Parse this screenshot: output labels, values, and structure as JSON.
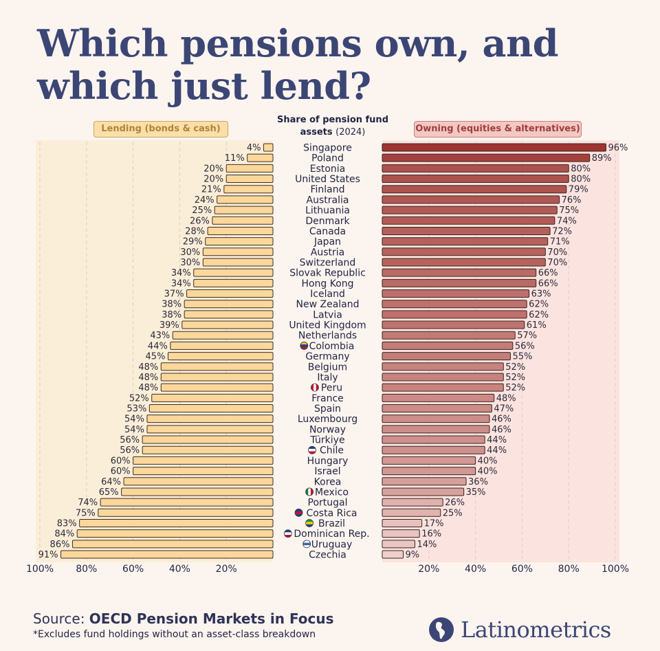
{
  "header": {
    "title_line1": "Which pensions own, and",
    "title_line2": "which just lend?",
    "subtitle_line1": "Share of pension fund",
    "subtitle_line2a": "assets",
    "subtitle_line2b": "(2024)"
  },
  "legend": {
    "lending": "Lending (bonds & cash)",
    "owning": "Owning (equities & alternatives)"
  },
  "colors": {
    "lending_bar": "#fbd79b",
    "lending_bg": "#fbeed8",
    "owning_dark": "#9e3530",
    "owning_light": "#efcfcb",
    "owning_bg": "#fbe3df",
    "title": "#3b4675"
  },
  "chart_data": {
    "type": "bar",
    "orientation": "horizontal-diverging",
    "categories": [
      "Singapore",
      "Poland",
      "Estonia",
      "United States",
      "Finland",
      "Australia",
      "Lithuania",
      "Denmark",
      "Canada",
      "Japan",
      "Austria",
      "Switzerland",
      "Slovak Republic",
      "Hong Kong",
      "Iceland",
      "New Zealand",
      "Latvia",
      "United Kingdom",
      "Netherlands",
      "Colombia",
      "Germany",
      "Belgium",
      "Italy",
      "Peru",
      "France",
      "Spain",
      "Luxembourg",
      "Norway",
      "Türkiye",
      "Chile",
      "Hungary",
      "Israel",
      "Korea",
      "Mexico",
      "Portugal",
      "Costa Rica",
      "Brazil",
      "Dominican Rep.",
      "Uruguay",
      "Czechia"
    ],
    "flag_countries": [
      "Colombia",
      "Peru",
      "Chile",
      "Mexico",
      "Costa Rica",
      "Brazil",
      "Dominican Rep.",
      "Uruguay"
    ],
    "series": [
      {
        "name": "Lending (bonds & cash)",
        "values": [
          4,
          11,
          20,
          20,
          21,
          24,
          25,
          26,
          28,
          29,
          30,
          30,
          34,
          34,
          37,
          38,
          38,
          39,
          43,
          44,
          45,
          48,
          48,
          48,
          52,
          53,
          54,
          54,
          56,
          56,
          60,
          60,
          64,
          65,
          74,
          75,
          83,
          84,
          86,
          91
        ]
      },
      {
        "name": "Owning (equities & alternatives)",
        "values": [
          96,
          89,
          80,
          80,
          79,
          76,
          75,
          74,
          72,
          71,
          70,
          70,
          66,
          66,
          63,
          62,
          62,
          61,
          57,
          56,
          55,
          52,
          52,
          52,
          48,
          47,
          46,
          46,
          44,
          44,
          40,
          40,
          36,
          35,
          26,
          25,
          17,
          16,
          14,
          9
        ]
      }
    ],
    "x_range": [
      0,
      100
    ],
    "left_ticks": [
      "100%",
      "80%",
      "60%",
      "40%",
      "20%"
    ],
    "right_ticks": [
      "20%",
      "40%",
      "60%",
      "80%",
      "100%"
    ],
    "value_suffix": "%",
    "grid": true
  },
  "footer": {
    "source_prefix": "Source:",
    "source_name": "OECD Pension Markets in Focus",
    "note": "*Excludes fund holdings without an asset-class breakdown",
    "brand": "Latinometrics"
  }
}
